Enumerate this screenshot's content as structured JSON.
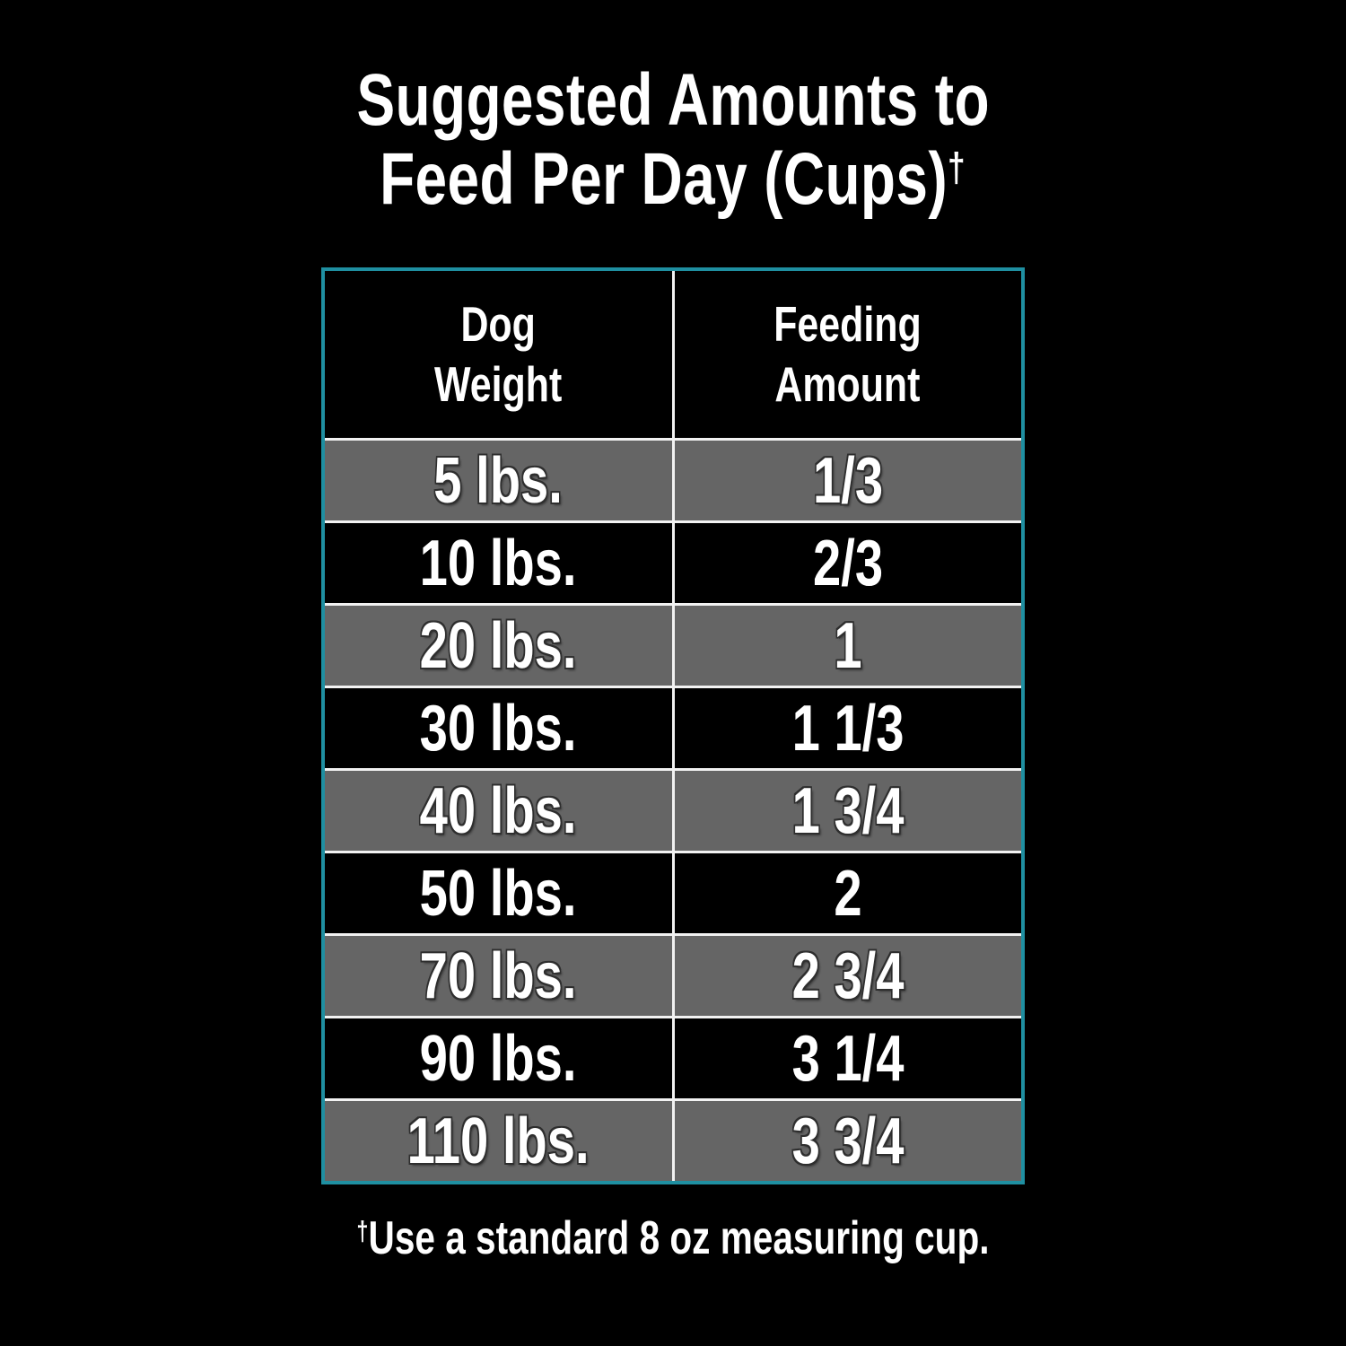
{
  "colors": {
    "background": "#000000",
    "table_border_teal": "#1f8fa1",
    "row_gray": "#656565",
    "row_black": "#000000",
    "divider_white": "#f2f2f2",
    "text_white": "#ffffff"
  },
  "title": {
    "line1": "Suggested Amounts to",
    "line2": "Feed Per Day (Cups)",
    "dagger": "†"
  },
  "table": {
    "header": {
      "col1_line1": "Dog",
      "col1_line2": "Weight",
      "col2_line1": "Feeding",
      "col2_line2": "Amount"
    },
    "rows": [
      {
        "weight": "5 lbs.",
        "amount": "1/3"
      },
      {
        "weight": "10 lbs.",
        "amount": "2/3"
      },
      {
        "weight": "20 lbs.",
        "amount": "1"
      },
      {
        "weight": "30 lbs.",
        "amount": "1 1/3"
      },
      {
        "weight": "40 lbs.",
        "amount": "1 3/4"
      },
      {
        "weight": "50 lbs.",
        "amount": "2"
      },
      {
        "weight": "70 lbs.",
        "amount": "2 3/4"
      },
      {
        "weight": "90 lbs.",
        "amount": "3 1/4"
      },
      {
        "weight": "110 lbs.",
        "amount": "3 3/4"
      }
    ]
  },
  "footnote": {
    "dagger": "†",
    "text": "Use a standard 8 oz measuring cup."
  },
  "chart_data": {
    "type": "table",
    "title": "Suggested Amounts to Feed Per Day (Cups)†",
    "columns": [
      "Dog Weight",
      "Feeding Amount"
    ],
    "rows": [
      [
        "5 lbs.",
        "1/3"
      ],
      [
        "10 lbs.",
        "2/3"
      ],
      [
        "20 lbs.",
        "1"
      ],
      [
        "30 lbs.",
        "1 1/3"
      ],
      [
        "40 lbs.",
        "1 3/4"
      ],
      [
        "50 lbs.",
        "2"
      ],
      [
        "70 lbs.",
        "2 3/4"
      ],
      [
        "90 lbs.",
        "3 1/4"
      ],
      [
        "110 lbs.",
        "3 3/4"
      ]
    ],
    "weights_lbs": [
      5,
      10,
      20,
      30,
      40,
      50,
      70,
      90,
      110
    ],
    "cups_per_day": [
      0.333,
      0.667,
      1,
      1.333,
      1.75,
      2,
      2.75,
      3.25,
      3.75
    ],
    "footnote": "†Use a standard 8 oz measuring cup.",
    "layout": {
      "row_shading": "alternating gray/black starting gray",
      "border_color": "#1f8fa1",
      "grid": "white dividers"
    }
  }
}
